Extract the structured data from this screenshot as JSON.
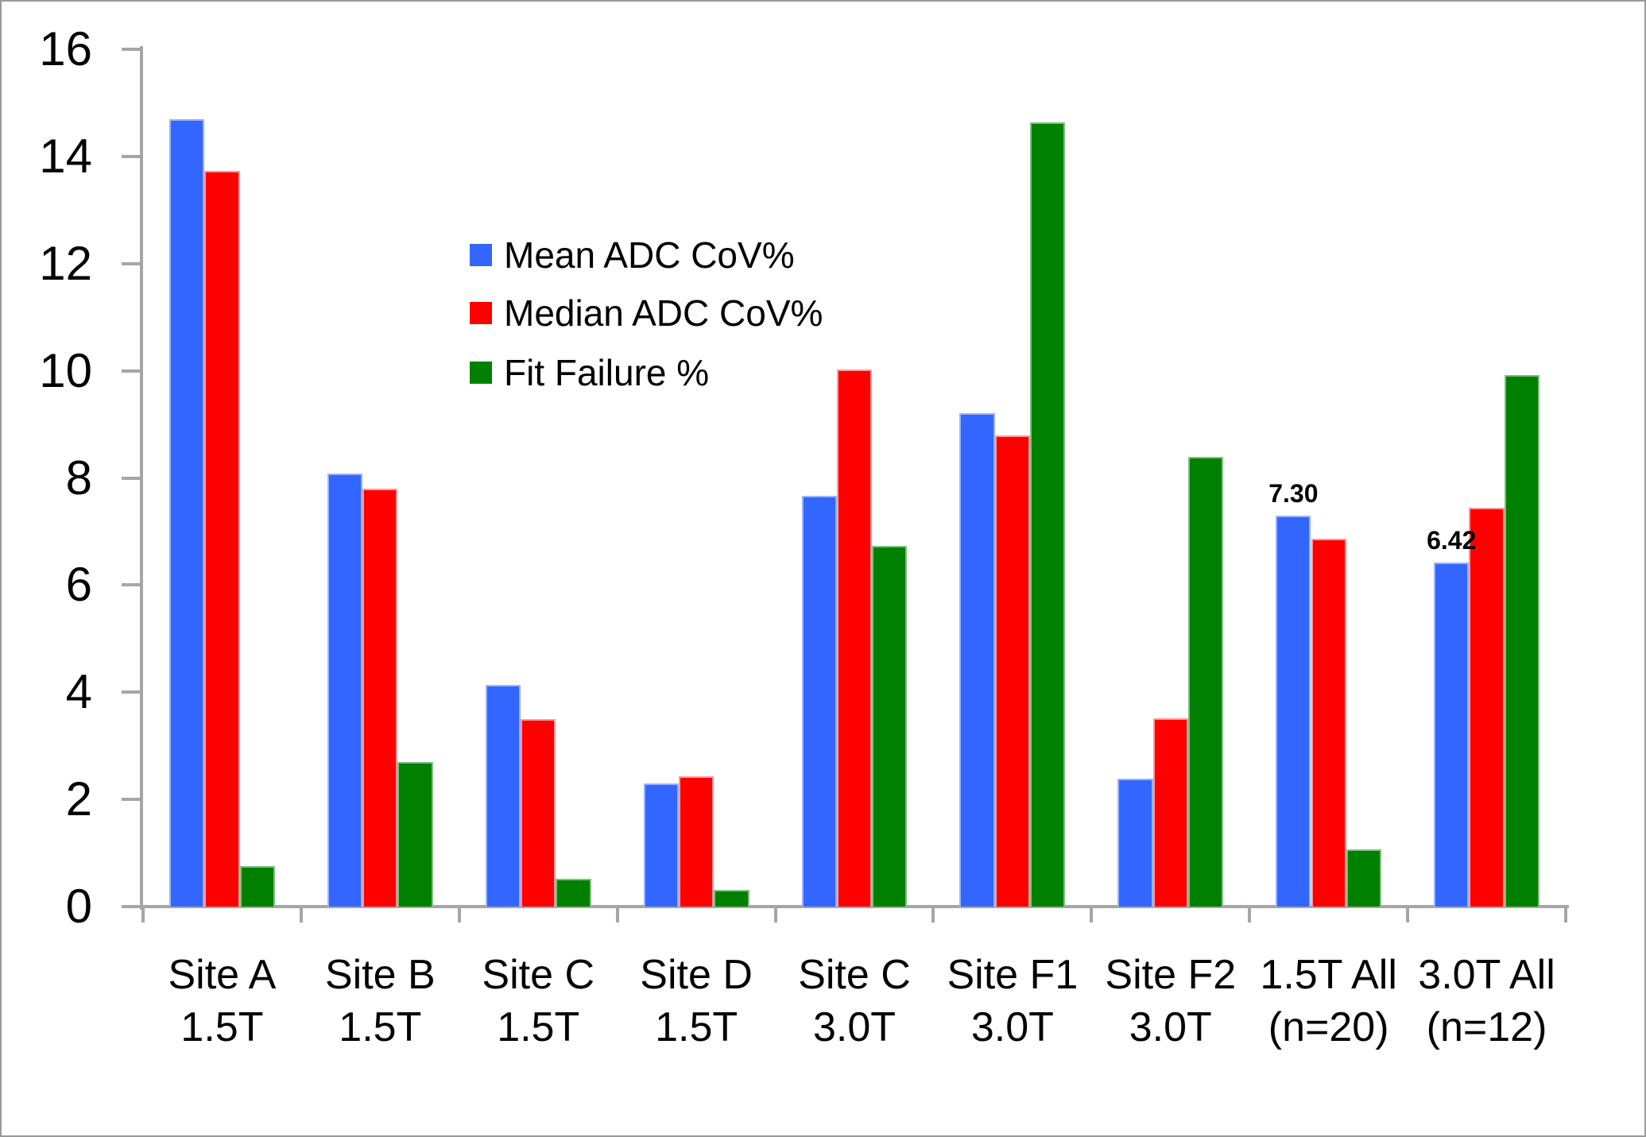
{
  "figure": {
    "background": "#FFFFFF",
    "border_color": "#999999",
    "axis_color": "#A6A6A6"
  },
  "chart_data": {
    "type": "bar",
    "title": "",
    "xlabel": "",
    "ylabel": "",
    "ylim": [
      0,
      16
    ],
    "yticks": [
      0,
      2,
      4,
      6,
      8,
      10,
      12,
      14,
      16
    ],
    "grid": false,
    "legend_position": "upper-left-of-plot",
    "categories": [
      {
        "line1": "Site A",
        "line2": "1.5T"
      },
      {
        "line1": "Site B",
        "line2": "1.5T"
      },
      {
        "line1": "Site C",
        "line2": "1.5T"
      },
      {
        "line1": "Site D",
        "line2": "1.5T"
      },
      {
        "line1": "Site C",
        "line2": "3.0T"
      },
      {
        "line1": "Site F1",
        "line2": "3.0T"
      },
      {
        "line1": "Site F2",
        "line2": "3.0T"
      },
      {
        "line1": "1.5T All",
        "line2": "(n=20)"
      },
      {
        "line1": "3.0T All",
        "line2": "(n=12)"
      }
    ],
    "series": [
      {
        "name": "Mean ADC CoV%",
        "color": "#3366FF",
        "edge_color": "#99B3FF",
        "values": [
          14.7,
          8.08,
          4.14,
          2.3,
          7.67,
          9.21,
          2.39,
          7.3,
          6.42
        ]
      },
      {
        "name": "Median ADC CoV%",
        "color": "#FF0000",
        "edge_color": "#FF9999",
        "values": [
          13.73,
          7.8,
          3.5,
          2.43,
          10.02,
          8.79,
          3.51,
          6.87,
          7.44
        ]
      },
      {
        "name": "Fit Failure %",
        "color": "#008000",
        "edge_color": "#80C080",
        "values": [
          0.76,
          2.7,
          0.52,
          0.31,
          6.73,
          14.64,
          8.39,
          1.07,
          9.92
        ]
      }
    ],
    "value_labels": [
      {
        "series": 0,
        "category": 7,
        "text": "7.30"
      },
      {
        "series": 0,
        "category": 8,
        "text": "6.42"
      }
    ]
  }
}
